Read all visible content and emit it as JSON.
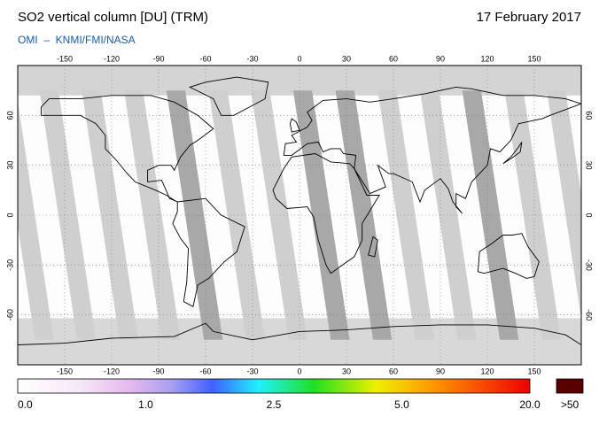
{
  "header": {
    "title": "SO2 vertical column [DU] (TRM)",
    "date": "17 February 2017",
    "subtitle": "OMI  –  KNMI/FMI/NASA"
  },
  "map": {
    "lonlim": [
      -180,
      180
    ],
    "latlim": [
      -90,
      90
    ],
    "lon_ticks": [
      -150,
      -120,
      -90,
      -60,
      -30,
      0,
      30,
      60,
      90,
      120,
      150
    ],
    "lat_ticks": [
      60,
      30,
      0,
      -30,
      -60
    ]
  },
  "colorbar": {
    "labels": [
      "0.0",
      "1.0",
      "2.5",
      "5.0",
      "20.0"
    ],
    "overflow_label": ">50"
  }
}
